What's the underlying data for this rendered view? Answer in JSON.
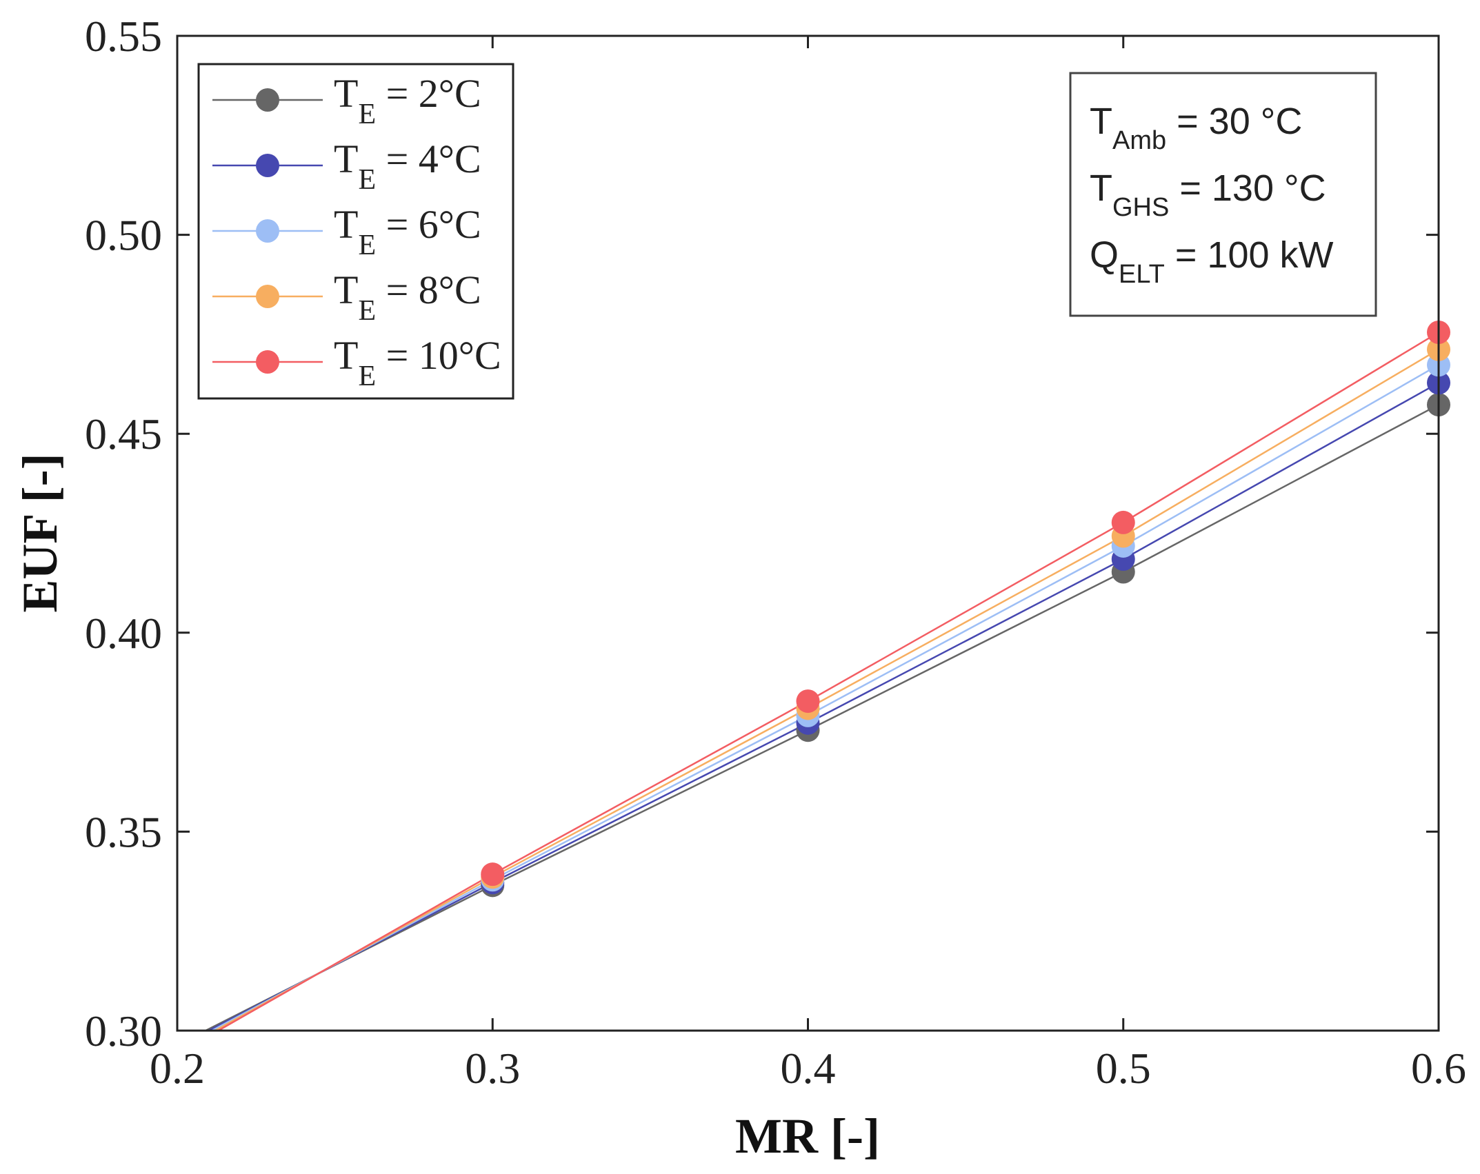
{
  "chart_data": {
    "type": "line",
    "title": "",
    "xlabel": "MR [-]",
    "ylabel": "EUF [-]",
    "xlim": [
      0.2,
      0.6
    ],
    "ylim": [
      0.3,
      0.55
    ],
    "xticks": [
      "0.2",
      "0.3",
      "0.4",
      "0.5",
      "0.6"
    ],
    "yticks": [
      "0.30",
      "0.35",
      "0.40",
      "0.45",
      "0.50",
      "0.55"
    ],
    "x": [
      0.21,
      0.3,
      0.4,
      0.5,
      0.6
    ],
    "legend_position": "top-left",
    "series": [
      {
        "name": "T_E = 2°C",
        "label_main": "T",
        "label_sub": "E",
        "label_rest": " = 2°C",
        "color": "#666666",
        "line_start": [
          0.209,
          0.3
        ],
        "values": [
          null,
          0.3365,
          0.3755,
          0.4153,
          0.4573
        ]
      },
      {
        "name": "T_E = 4°C",
        "label_main": "T",
        "label_sub": "E",
        "label_rest": " = 4°C",
        "color": "#4648b0",
        "line_start": [
          0.21,
          0.3
        ],
        "values": [
          null,
          0.3372,
          0.3773,
          0.4185,
          0.4628
        ]
      },
      {
        "name": "T_E = 6°C",
        "label_main": "T",
        "label_sub": "E",
        "label_rest": " = 6°C",
        "color": "#9dbef5",
        "line_start": [
          0.211,
          0.3
        ],
        "values": [
          null,
          0.3379,
          0.3792,
          0.4218,
          0.4673
        ]
      },
      {
        "name": "T_E = 8°C",
        "label_main": "T",
        "label_sub": "E",
        "label_rest": " = 8°C",
        "color": "#f7ae60",
        "line_start": [
          0.212,
          0.3
        ],
        "values": [
          null,
          0.3386,
          0.381,
          0.4243,
          0.4712
        ]
      },
      {
        "name": "T_E = 10°C",
        "label_main": "T",
        "label_sub": "E",
        "label_rest": " = 10°C",
        "color": "#f35d62",
        "line_start": [
          0.213,
          0.3
        ],
        "values": [
          null,
          0.3393,
          0.3828,
          0.4277,
          0.4755
        ]
      }
    ],
    "annotations": [
      {
        "main": "T",
        "sub": "Amb",
        "rest": " = 30 °C"
      },
      {
        "main": "T",
        "sub": "GHS",
        "rest": " = 130 °C"
      },
      {
        "main": "Q",
        "sub": "ELT",
        "rest": " = 100 kW"
      }
    ]
  }
}
